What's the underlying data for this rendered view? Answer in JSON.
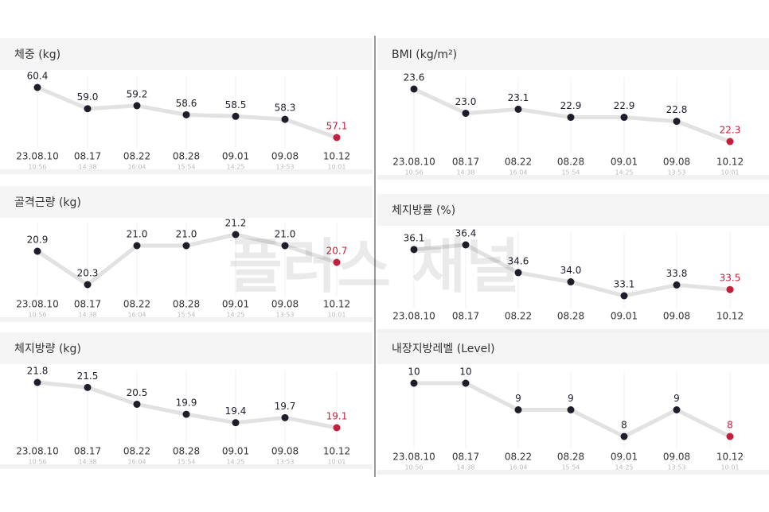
{
  "chart_data": [
    {
      "type": "line",
      "title": "체중 (kg)",
      "categories": [
        "23.08.10",
        "08.17",
        "08.22",
        "08.28",
        "09.01",
        "09.08",
        "10.12"
      ],
      "times": [
        "10:56",
        "14:38",
        "16:04",
        "15:54",
        "14:25",
        "13:53",
        "10:01"
      ],
      "values": [
        60.4,
        59.0,
        59.2,
        58.6,
        58.5,
        58.3,
        57.1
      ],
      "value_labels": [
        "60.4",
        "59.0",
        "59.2",
        "58.6",
        "58.5",
        "58.3",
        "57.1"
      ],
      "color": "#1e1e2a",
      "highlight_color": "#c41f3e",
      "line_color": "#e2e2e2"
    },
    {
      "type": "line",
      "title": "BMI (kg/m²)",
      "categories": [
        "23.08.10",
        "08.17",
        "08.22",
        "08.28",
        "09.01",
        "09.08",
        "10.12"
      ],
      "times": [
        "10:56",
        "14:38",
        "16:04",
        "15:54",
        "14:25",
        "13:53",
        "10:01"
      ],
      "values": [
        23.6,
        23.0,
        23.1,
        22.9,
        22.9,
        22.8,
        22.3
      ],
      "value_labels": [
        "23.6",
        "23.0",
        "23.1",
        "22.9",
        "22.9",
        "22.8",
        "22.3"
      ],
      "color": "#1e1e2a",
      "highlight_color": "#c41f3e",
      "line_color": "#e2e2e2"
    },
    {
      "type": "line",
      "title": "골격근량 (kg)",
      "categories": [
        "23.08.10",
        "08.17",
        "08.22",
        "08.28",
        "09.01",
        "09.08",
        "10.12"
      ],
      "times": [
        "10:56",
        "14:38",
        "16:04",
        "15:54",
        "14:25",
        "13:53",
        "10:01"
      ],
      "values": [
        20.9,
        20.3,
        21.0,
        21.0,
        21.2,
        21.0,
        20.7
      ],
      "value_labels": [
        "20.9",
        "20.3",
        "21.0",
        "21.0",
        "21.2",
        "21.0",
        "20.7"
      ],
      "color": "#1e1e2a",
      "highlight_color": "#c41f3e",
      "line_color": "#e2e2e2"
    },
    {
      "type": "line",
      "title": "체지방률 (%)",
      "categories": [
        "23.08.10",
        "08.17",
        "08.22",
        "08.28",
        "09.01",
        "09.08",
        "10.12"
      ],
      "values": [
        36.1,
        36.4,
        34.6,
        34.0,
        33.1,
        33.8,
        33.5
      ],
      "value_labels": [
        "36.1",
        "36.4",
        "34.6",
        "34.0",
        "33.1",
        "33.8",
        "33.5"
      ],
      "color": "#1e1e2a",
      "highlight_color": "#c41f3e",
      "line_color": "#e2e2e2"
    },
    {
      "type": "line",
      "title": "체지방량 (kg)",
      "categories": [
        "23.08.10",
        "08.17",
        "08.22",
        "08.28",
        "09.01",
        "09.08",
        "10.12"
      ],
      "times": [
        "10:56",
        "14:38",
        "16:04",
        "15:54",
        "14:25",
        "13:53",
        "10:01"
      ],
      "values": [
        21.8,
        21.5,
        20.5,
        19.9,
        19.4,
        19.7,
        19.1
      ],
      "value_labels": [
        "21.8",
        "21.5",
        "20.5",
        "19.9",
        "19.4",
        "19.7",
        "19.1"
      ],
      "color": "#1e1e2a",
      "highlight_color": "#c41f3e",
      "line_color": "#e2e2e2"
    },
    {
      "type": "line",
      "title": "내장지방레벨 (Level)",
      "categories": [
        "23.08.10",
        "08.17",
        "08.22",
        "08.28",
        "09.01",
        "09.08",
        "10.12"
      ],
      "times": [
        "10:56",
        "14:38",
        "16:04",
        "15:54",
        "14:25",
        "13:53",
        "10:01"
      ],
      "values": [
        10,
        10,
        9,
        9,
        8,
        9,
        8
      ],
      "color": "#1e1e2a",
      "highlight_color": "#c41f3e",
      "line_color": "#e2e2e2"
    }
  ],
  "watermark": "플러스 채널"
}
